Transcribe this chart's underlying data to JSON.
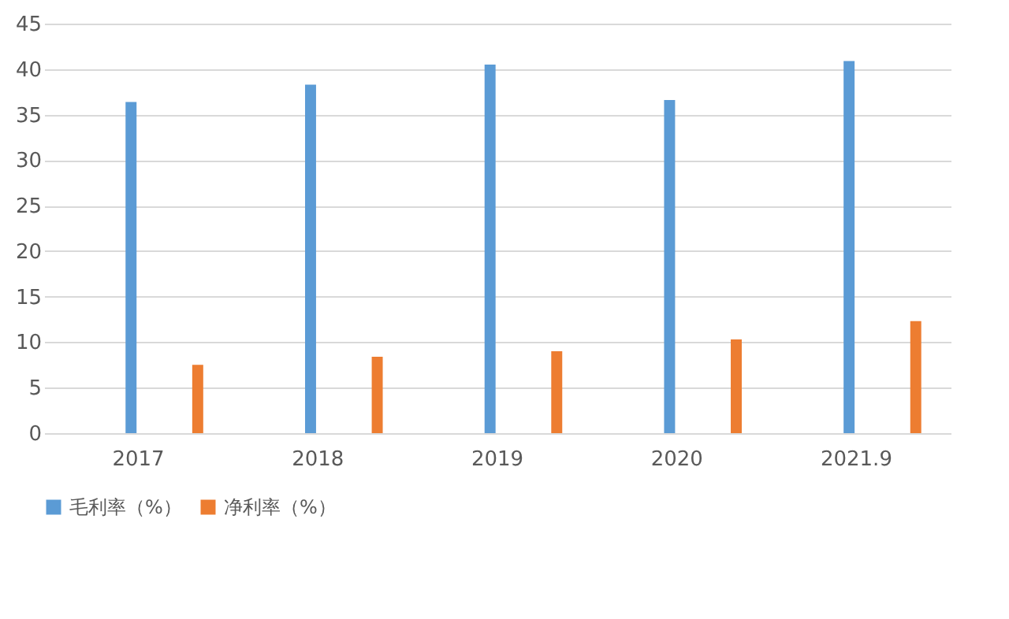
{
  "chart_data": {
    "type": "bar",
    "categories": [
      "2017",
      "2018",
      "2019",
      "2020",
      "2021.9"
    ],
    "series": [
      {
        "name": "毛利率（%）",
        "color": "#5b9bd5",
        "values": [
          36.4,
          38.3,
          40.5,
          36.6,
          40.9
        ]
      },
      {
        "name": "净利率（%）",
        "color": "#ed7d31",
        "values": [
          7.5,
          8.4,
          9.0,
          10.3,
          12.3
        ]
      }
    ],
    "ylim": [
      0,
      45
    ],
    "yticks": [
      0,
      5,
      10,
      15,
      20,
      25,
      30,
      35,
      40,
      45
    ],
    "grid": "y",
    "legend": "bottom"
  }
}
